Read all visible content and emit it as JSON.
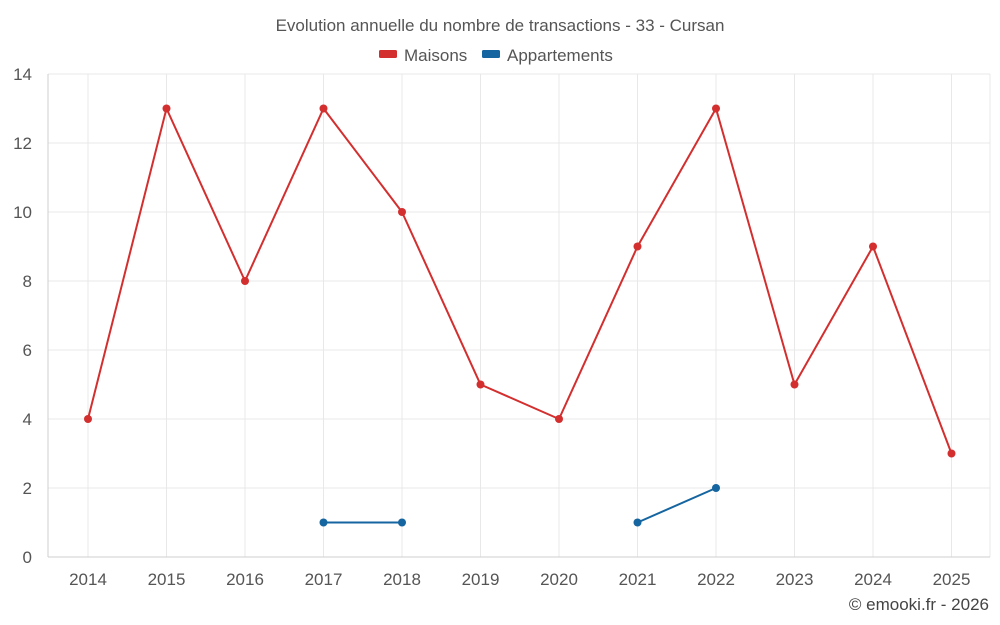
{
  "chart_data": {
    "type": "line",
    "title": "Evolution annuelle du nombre de transactions - 33 - Cursan",
    "categories": [
      "2014",
      "2015",
      "2016",
      "2017",
      "2018",
      "2019",
      "2020",
      "2021",
      "2022",
      "2023",
      "2024",
      "2025"
    ],
    "ylim": [
      0,
      14
    ],
    "yticks": [
      "0",
      "2",
      "4",
      "6",
      "8",
      "10",
      "12",
      "14"
    ],
    "grid": true,
    "legend_position": "top-center",
    "series": [
      {
        "name": "Maisons",
        "color": "#d32f2f",
        "values": [
          4,
          13,
          8,
          13,
          10,
          5,
          4,
          9,
          13,
          5,
          9,
          3
        ]
      },
      {
        "name": "Appartements",
        "color": "#1565a0",
        "values": [
          null,
          null,
          null,
          1,
          1,
          null,
          null,
          1,
          2,
          null,
          null,
          null
        ]
      }
    ],
    "credit": "© emooki.fr - 2026"
  }
}
